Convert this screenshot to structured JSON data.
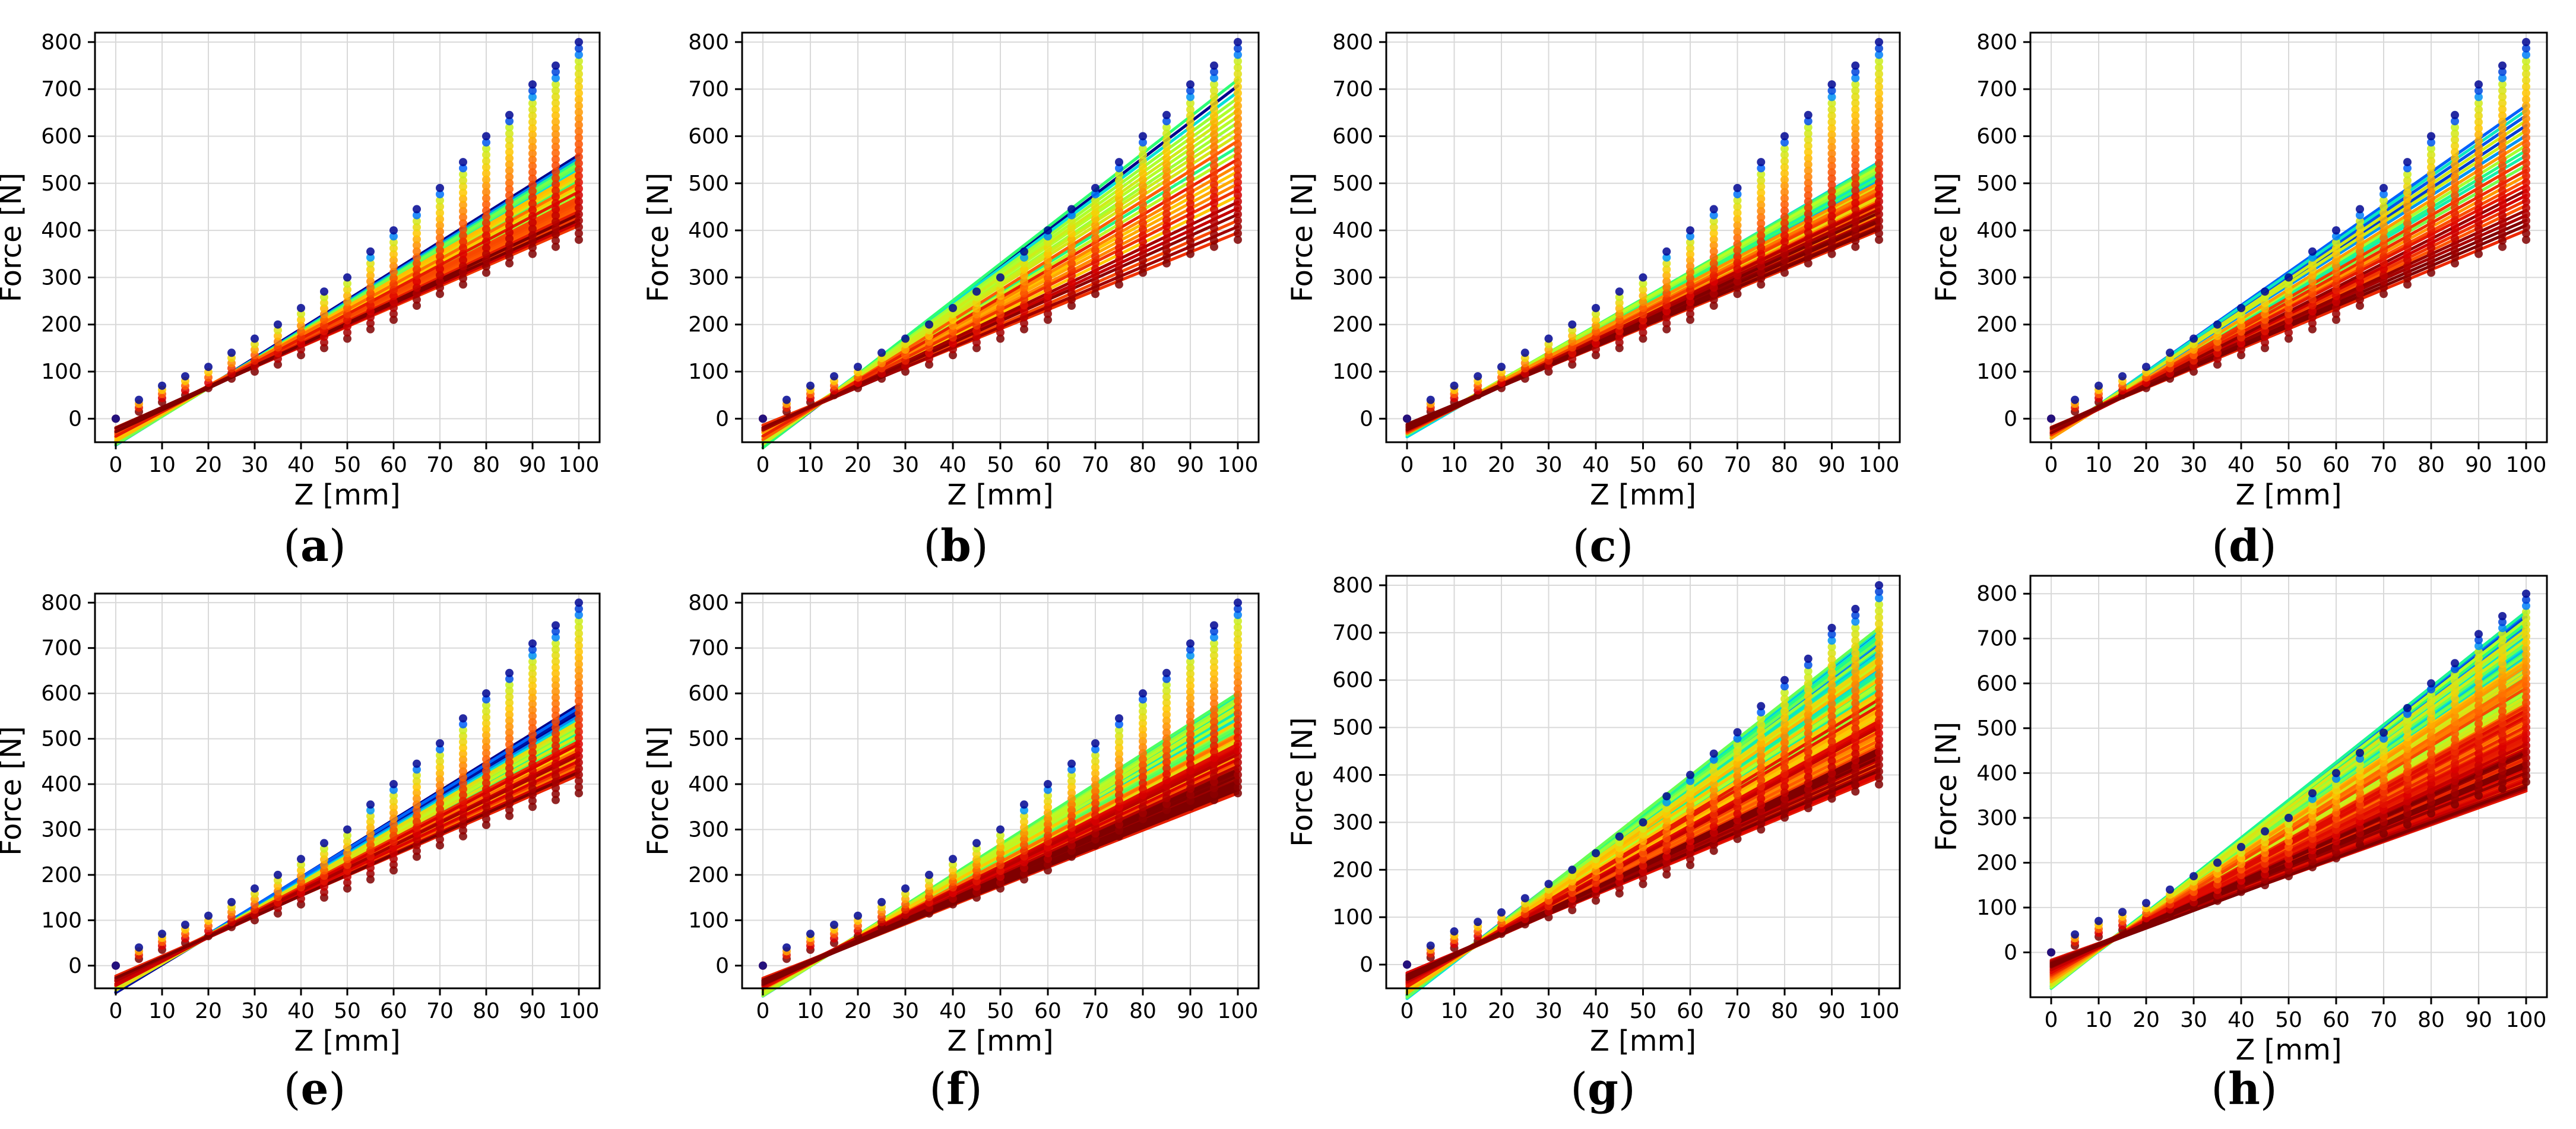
{
  "figure": {
    "captions": [
      "(a)",
      "(b)",
      "(c)",
      "(d)",
      "(e)",
      "(f)",
      "(g)",
      "(h)"
    ]
  },
  "colors": {
    "grid": "#d9d9d9",
    "axis": "#000000",
    "colormap": "jet (blue -> cyan -> green -> yellow -> red)"
  },
  "chart_data": [
    {
      "panel": "a",
      "type": "scatter+line",
      "xlabel": "Z [mm]",
      "ylabel": "Force [N]",
      "xlim": [
        0,
        100
      ],
      "ylim": [
        -50,
        820
      ],
      "xticks": [
        0,
        10,
        20,
        30,
        40,
        50,
        60,
        70,
        80,
        90,
        100
      ],
      "yticks": [
        0,
        100,
        200,
        300,
        400,
        500,
        600,
        700,
        800
      ],
      "grid": true,
      "points": {
        "x": [
          0,
          5,
          10,
          15,
          20,
          25,
          30,
          35,
          40,
          45,
          50,
          55,
          60,
          65,
          70,
          75,
          80,
          85,
          90,
          95,
          100
        ],
        "y_max": [
          0,
          40,
          70,
          90,
          110,
          140,
          170,
          200,
          235,
          270,
          300,
          355,
          400,
          445,
          490,
          545,
          600,
          645,
          710,
          750,
          800
        ],
        "y_min": [
          0,
          15,
          35,
          50,
          65,
          85,
          100,
          115,
          135,
          150,
          170,
          190,
          210,
          240,
          265,
          285,
          310,
          330,
          350,
          365,
          380
        ]
      },
      "fit_lines": {
        "intercept_range": [
          -55,
          -20
        ],
        "end_at_100_range": [
          410,
          560
        ],
        "count": 26
      }
    },
    {
      "panel": "b",
      "type": "scatter+line",
      "xlabel": "Z [mm]",
      "ylabel": "Force [N]",
      "xlim": [
        0,
        100
      ],
      "ylim": [
        -50,
        820
      ],
      "xticks": [
        0,
        10,
        20,
        30,
        40,
        50,
        60,
        70,
        80,
        90,
        100
      ],
      "yticks": [
        0,
        100,
        200,
        300,
        400,
        500,
        600,
        700,
        800
      ],
      "grid": true,
      "points": {
        "x": [
          0,
          5,
          10,
          15,
          20,
          25,
          30,
          35,
          40,
          45,
          50,
          55,
          60,
          65,
          70,
          75,
          80,
          85,
          90,
          95,
          100
        ],
        "y_max": [
          0,
          40,
          70,
          90,
          110,
          140,
          170,
          200,
          235,
          270,
          300,
          355,
          400,
          445,
          490,
          545,
          600,
          645,
          710,
          750,
          800
        ],
        "y_min": [
          0,
          15,
          35,
          50,
          65,
          85,
          100,
          115,
          135,
          150,
          170,
          190,
          210,
          240,
          265,
          285,
          310,
          330,
          350,
          365,
          380
        ]
      },
      "fit_lines": {
        "intercept_range": [
          -60,
          -15
        ],
        "end_at_100_range": [
          395,
          720
        ],
        "count": 26
      }
    },
    {
      "panel": "c",
      "type": "scatter+line",
      "xlabel": "Z [mm]",
      "ylabel": "Force [N]",
      "xlim": [
        0,
        100
      ],
      "ylim": [
        -50,
        820
      ],
      "xticks": [
        0,
        10,
        20,
        30,
        40,
        50,
        60,
        70,
        80,
        90,
        100
      ],
      "yticks": [
        0,
        100,
        200,
        300,
        400,
        500,
        600,
        700,
        800
      ],
      "grid": true,
      "points": {
        "x": [
          0,
          5,
          10,
          15,
          20,
          25,
          30,
          35,
          40,
          45,
          50,
          55,
          60,
          65,
          70,
          75,
          80,
          85,
          90,
          95,
          100
        ],
        "y_max": [
          0,
          40,
          70,
          90,
          110,
          140,
          170,
          200,
          235,
          270,
          300,
          355,
          400,
          445,
          490,
          545,
          600,
          645,
          710,
          750,
          800
        ],
        "y_min": [
          0,
          15,
          35,
          50,
          65,
          85,
          100,
          115,
          135,
          150,
          170,
          190,
          210,
          240,
          265,
          285,
          310,
          330,
          350,
          365,
          380
        ]
      },
      "fit_lines": {
        "intercept_range": [
          -35,
          -15
        ],
        "end_at_100_range": [
          400,
          545
        ],
        "count": 40
      }
    },
    {
      "panel": "d",
      "type": "scatter+line",
      "xlabel": "Z [mm]",
      "ylabel": "Force [N]",
      "xlim": [
        0,
        100
      ],
      "ylim": [
        -50,
        820
      ],
      "xticks": [
        0,
        10,
        20,
        30,
        40,
        50,
        60,
        70,
        80,
        90,
        100
      ],
      "yticks": [
        0,
        100,
        200,
        300,
        400,
        500,
        600,
        700,
        800
      ],
      "grid": true,
      "points": {
        "x": [
          0,
          5,
          10,
          15,
          20,
          25,
          30,
          35,
          40,
          45,
          50,
          55,
          60,
          65,
          70,
          75,
          80,
          85,
          90,
          95,
          100
        ],
        "y_max": [
          0,
          40,
          70,
          90,
          110,
          140,
          170,
          200,
          235,
          270,
          300,
          355,
          400,
          445,
          490,
          545,
          600,
          645,
          710,
          750,
          800
        ],
        "y_min": [
          0,
          15,
          35,
          50,
          65,
          85,
          100,
          115,
          135,
          150,
          170,
          190,
          210,
          240,
          265,
          285,
          310,
          330,
          350,
          365,
          380
        ]
      },
      "fit_lines": {
        "intercept_range": [
          -45,
          -20
        ],
        "end_at_100_range": [
          400,
          665
        ],
        "count": 26
      }
    },
    {
      "panel": "e",
      "type": "scatter+line",
      "xlabel": "Z [mm]",
      "ylabel": "Force [N]",
      "xlim": [
        0,
        100
      ],
      "ylim": [
        -50,
        820
      ],
      "xticks": [
        0,
        10,
        20,
        30,
        40,
        50,
        60,
        70,
        80,
        90,
        100
      ],
      "yticks": [
        0,
        100,
        200,
        300,
        400,
        500,
        600,
        700,
        800
      ],
      "grid": true,
      "points": {
        "x": [
          0,
          5,
          10,
          15,
          20,
          25,
          30,
          35,
          40,
          45,
          50,
          55,
          60,
          65,
          70,
          75,
          80,
          85,
          90,
          95,
          100
        ],
        "y_max": [
          0,
          40,
          70,
          90,
          110,
          140,
          170,
          200,
          235,
          270,
          300,
          355,
          400,
          445,
          490,
          545,
          600,
          645,
          710,
          750,
          800
        ],
        "y_min": [
          0,
          15,
          35,
          50,
          65,
          85,
          100,
          115,
          135,
          150,
          170,
          190,
          210,
          240,
          265,
          285,
          310,
          330,
          350,
          365,
          380
        ]
      },
      "fit_lines": {
        "intercept_range": [
          -60,
          -25
        ],
        "end_at_100_range": [
          420,
          575
        ],
        "count": 26
      }
    },
    {
      "panel": "f",
      "type": "scatter+line",
      "xlabel": "Z [mm]",
      "ylabel": "Force [N]",
      "xlim": [
        0,
        100
      ],
      "ylim": [
        -50,
        820
      ],
      "xticks": [
        0,
        10,
        20,
        30,
        40,
        50,
        60,
        70,
        80,
        90,
        100
      ],
      "yticks": [
        0,
        100,
        200,
        300,
        400,
        500,
        600,
        700,
        800
      ],
      "grid": true,
      "points": {
        "x": [
          0,
          5,
          10,
          15,
          20,
          25,
          30,
          35,
          40,
          45,
          50,
          55,
          60,
          65,
          70,
          75,
          80,
          85,
          90,
          95,
          100
        ],
        "y_max": [
          0,
          40,
          70,
          90,
          110,
          140,
          170,
          200,
          235,
          270,
          300,
          355,
          400,
          445,
          490,
          545,
          600,
          645,
          710,
          750,
          800
        ],
        "y_min": [
          0,
          15,
          35,
          50,
          65,
          85,
          100,
          115,
          135,
          150,
          170,
          190,
          210,
          240,
          265,
          285,
          310,
          330,
          350,
          365,
          380
        ]
      },
      "fit_lines": {
        "intercept_range": [
          -65,
          -30
        ],
        "end_at_100_range": [
          380,
          600
        ],
        "count": 60
      }
    },
    {
      "panel": "g",
      "type": "scatter+line",
      "xlabel": "Z [mm]",
      "ylabel": "Force [N]",
      "xlim": [
        0,
        100
      ],
      "ylim": [
        -50,
        820
      ],
      "xticks": [
        0,
        10,
        20,
        30,
        40,
        50,
        60,
        70,
        80,
        90,
        100
      ],
      "yticks": [
        0,
        100,
        200,
        300,
        400,
        500,
        600,
        700,
        800
      ],
      "grid": true,
      "points": {
        "x": [
          0,
          5,
          10,
          15,
          20,
          25,
          30,
          35,
          40,
          45,
          50,
          55,
          60,
          65,
          70,
          75,
          80,
          85,
          90,
          95,
          100
        ],
        "y_max": [
          0,
          40,
          70,
          90,
          110,
          140,
          170,
          200,
          235,
          270,
          300,
          355,
          400,
          445,
          490,
          545,
          600,
          645,
          710,
          750,
          800
        ],
        "y_min": [
          0,
          15,
          35,
          50,
          65,
          85,
          100,
          115,
          135,
          150,
          170,
          190,
          210,
          240,
          265,
          285,
          310,
          330,
          350,
          365,
          380
        ]
      },
      "fit_lines": {
        "intercept_range": [
          -70,
          -20
        ],
        "end_at_100_range": [
          395,
          710
        ],
        "count": 70
      }
    },
    {
      "panel": "h",
      "type": "scatter+line",
      "xlabel": "Z [mm]",
      "ylabel": "Force [N]",
      "xlim": [
        0,
        100
      ],
      "ylim": [
        -100,
        840
      ],
      "xticks": [
        0,
        10,
        20,
        30,
        40,
        50,
        60,
        70,
        80,
        90,
        100
      ],
      "yticks": [
        0,
        100,
        200,
        300,
        400,
        500,
        600,
        700,
        800
      ],
      "grid": true,
      "points": {
        "x": [
          0,
          5,
          10,
          15,
          20,
          25,
          30,
          35,
          40,
          45,
          50,
          55,
          60,
          65,
          70,
          75,
          80,
          85,
          90,
          95,
          100
        ],
        "y_max": [
          0,
          40,
          70,
          90,
          110,
          140,
          170,
          200,
          235,
          270,
          300,
          355,
          400,
          445,
          490,
          545,
          600,
          645,
          710,
          750,
          800
        ],
        "y_min": [
          0,
          15,
          35,
          50,
          65,
          85,
          100,
          115,
          135,
          150,
          170,
          190,
          210,
          240,
          265,
          285,
          310,
          330,
          350,
          365,
          380
        ]
      },
      "fit_lines": {
        "intercept_range": [
          -80,
          -20
        ],
        "end_at_100_range": [
          360,
          760
        ],
        "count": 90
      }
    }
  ]
}
